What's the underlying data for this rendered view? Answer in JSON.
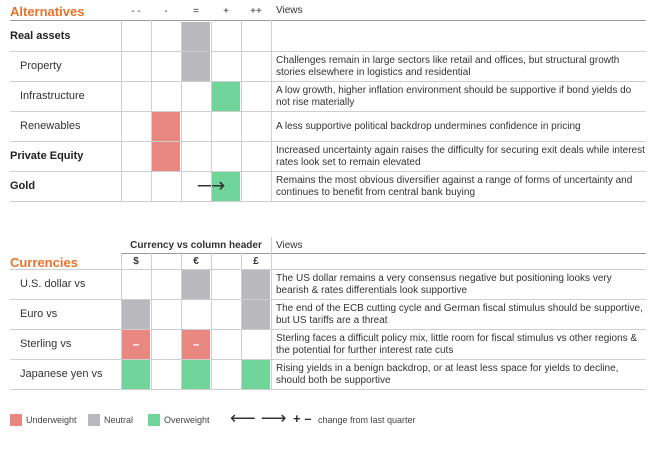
{
  "alternatives": {
    "title": "Alternatives",
    "columns": [
      "- -",
      "-",
      "=",
      "+",
      "++"
    ],
    "views_header": "Views",
    "rows": [
      {
        "label": "Real assets",
        "bold": true,
        "view": ""
      },
      {
        "label": "Property",
        "bold": false,
        "view": "Challenges remain in large sectors like retail and offices, but structural growth stories elsewhere in logistics and residential"
      },
      {
        "label": "Infrastructure",
        "bold": false,
        "view": "A low growth, higher inflation environment should be supportive if bond yields do not rise materially"
      },
      {
        "label": "Renewables",
        "bold": false,
        "view": "A less supportive political backdrop undermines confidence in pricing"
      },
      {
        "label": "Private Equity",
        "bold": true,
        "view": "Increased uncertainty again raises the difficulty for securing exit deals while interest rates look set to remain elevated"
      },
      {
        "label": "Gold",
        "bold": true,
        "view": "Remains the most obvious diversifier against a range of forms of uncertainty and continues to benefit from central bank buying"
      }
    ],
    "gold_change_arrow": "⟶"
  },
  "currencies": {
    "title": "Currencies",
    "group_header": "Currency vs column header",
    "views_header": "Views",
    "columns": [
      "$",
      "€",
      "£"
    ],
    "rows": [
      {
        "label": "U.S. dollar vs",
        "view": "The US dollar remains a very consensus negative but positioning looks very bearish & rates differentials look supportive"
      },
      {
        "label": "Euro vs",
        "view": "The end of the ECB cutting cycle and German fiscal stimulus should be supportive, but US tariffs are a threat"
      },
      {
        "label": "Sterling vs",
        "view": "Sterling faces a difficult policy mix, little room for fiscal stimulus vs other regions & the potential for further interest rate cuts"
      },
      {
        "label": "Japanese yen vs",
        "view": "Rising yields in a benign backdrop, or at least less space for yields to decline, should both be supportive"
      }
    ],
    "minus_sign": "–"
  },
  "legend": {
    "underweight": "Underweight",
    "neutral": "Neutral",
    "overweight": "Overweight",
    "arrows": "⟵ ⟶",
    "plusminus": "+ –",
    "change_note": "change from last quarter"
  },
  "colors": {
    "underweight": "#e98880",
    "neutral": "#b9b9bd",
    "overweight": "#6fd59a",
    "accent": "#e8742c"
  }
}
